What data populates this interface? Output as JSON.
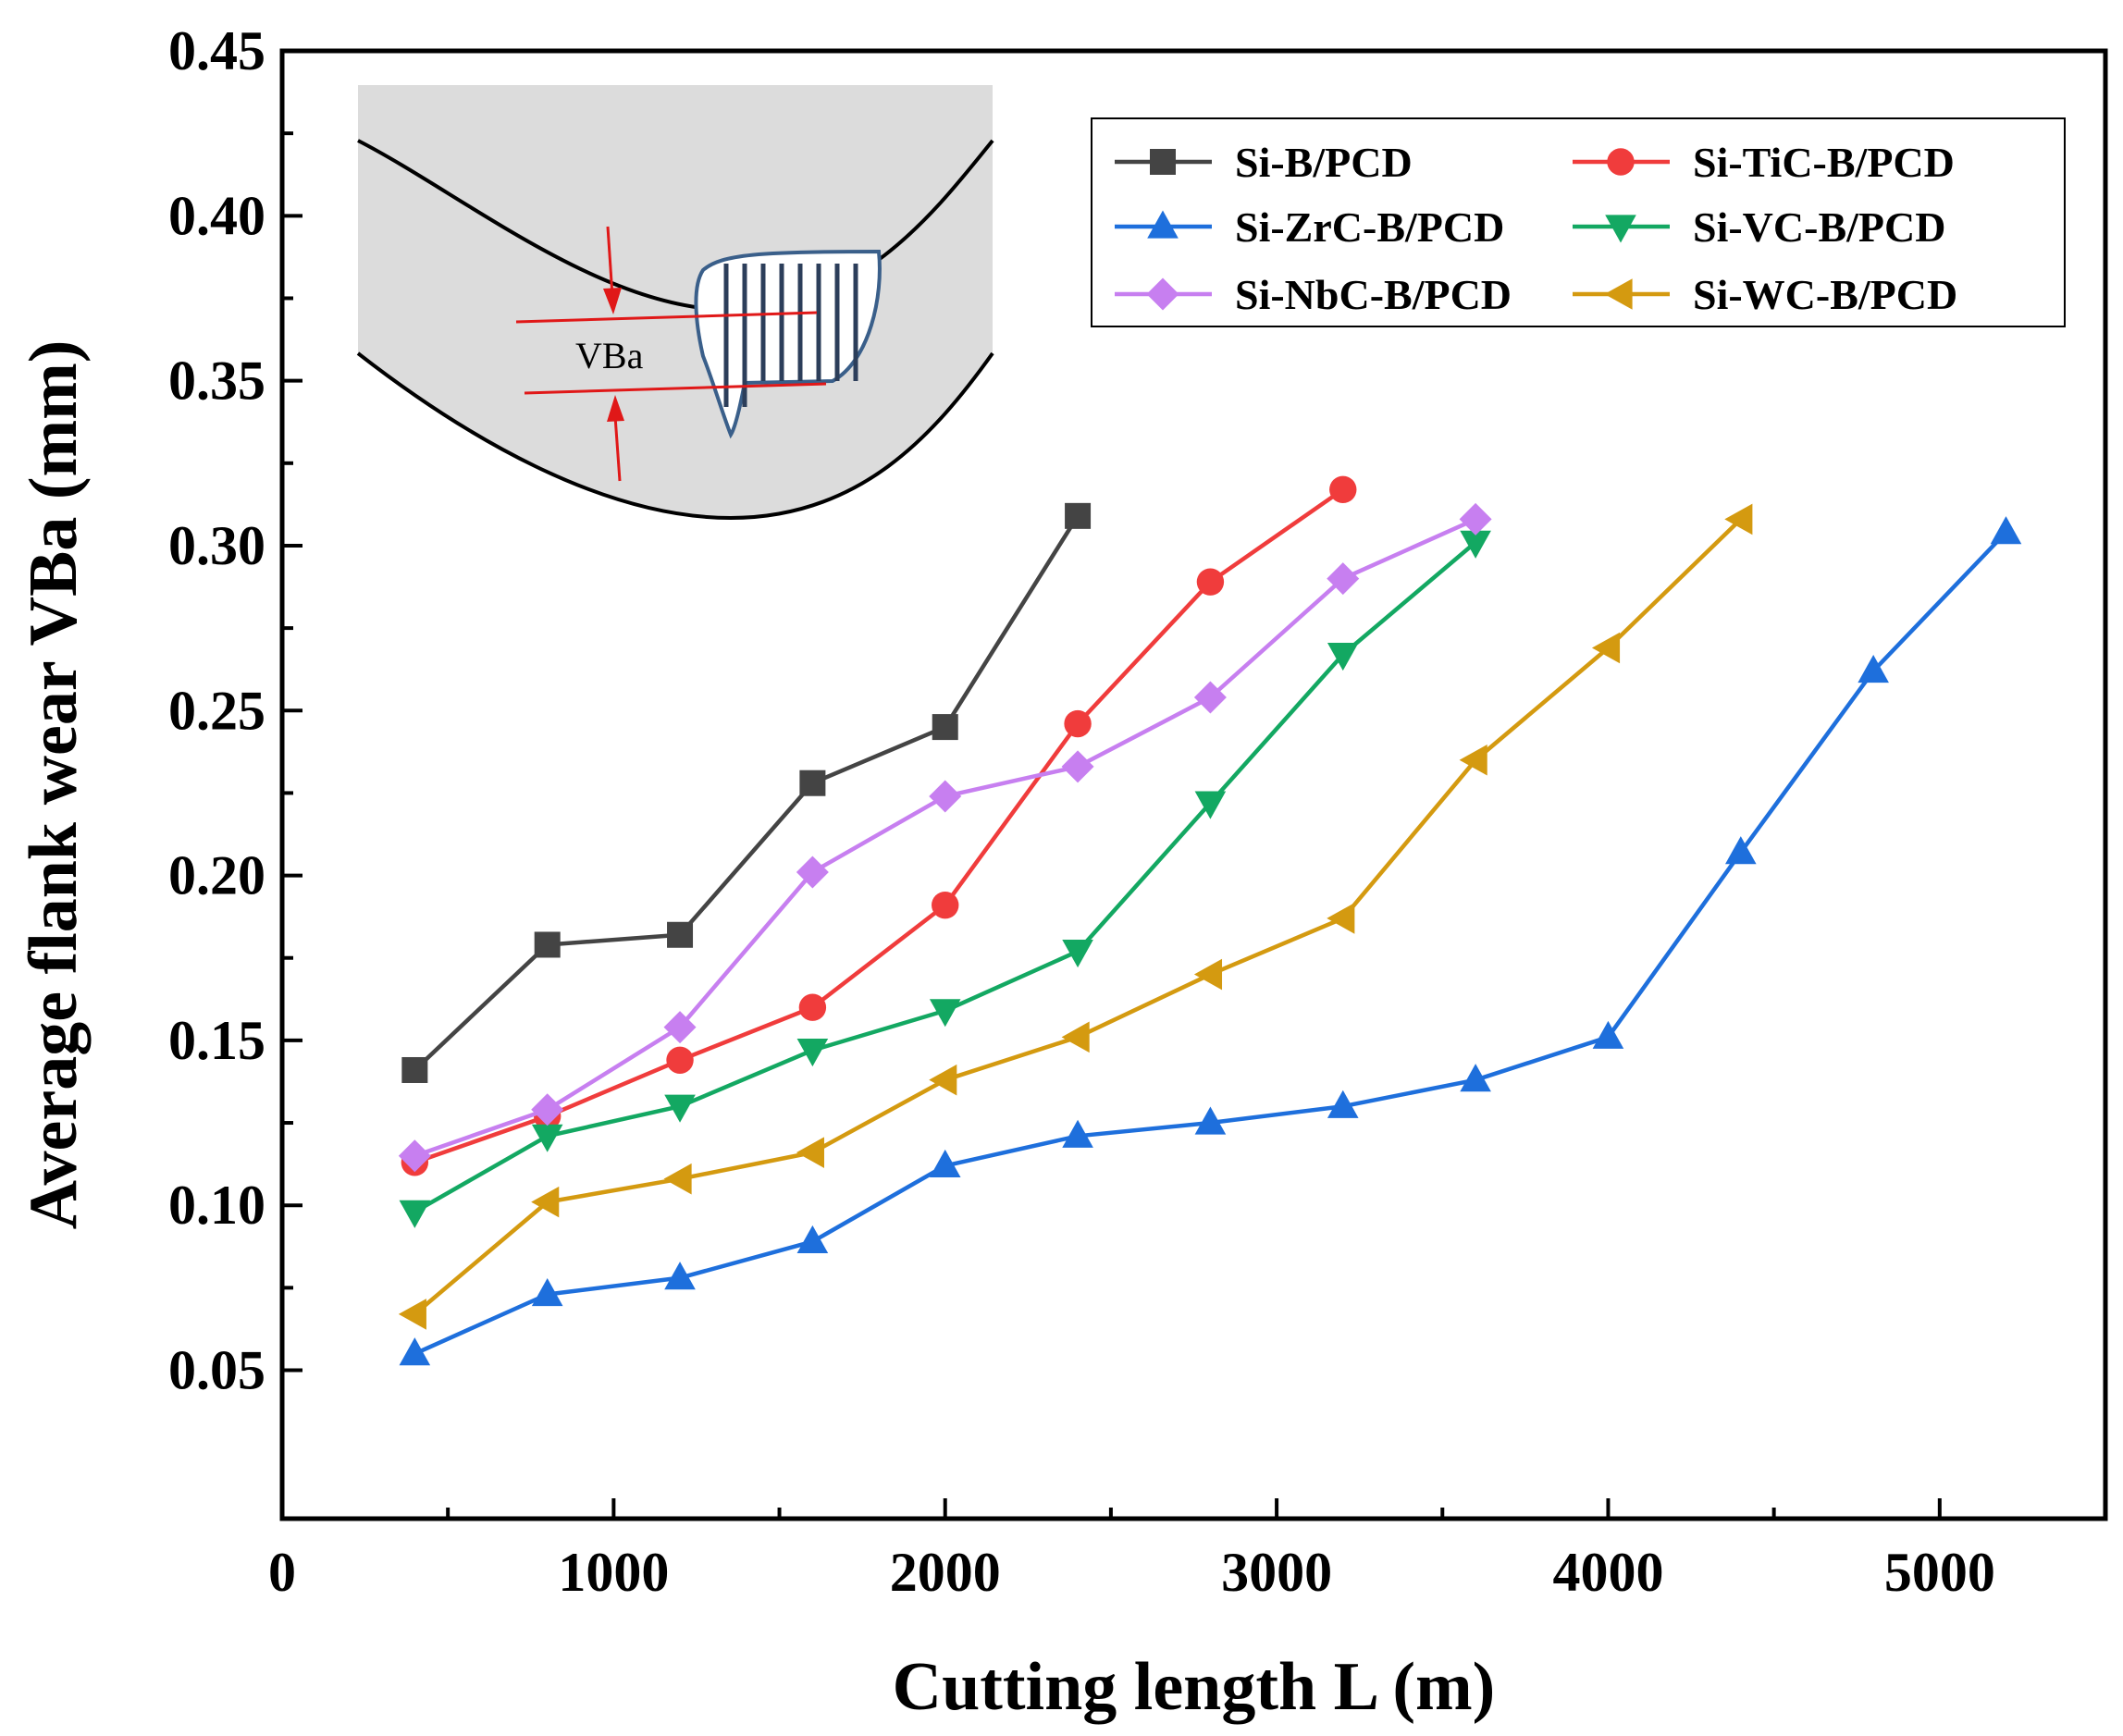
{
  "chart_data": {
    "type": "line",
    "title": "",
    "xlabel": "Cutting length L (m)",
    "ylabel": "Average flank wear VBa (mm)",
    "xlim": [
      0,
      5500
    ],
    "ylim": [
      0.005,
      0.45
    ],
    "xticks": [
      0,
      1000,
      2000,
      3000,
      4000,
      5000
    ],
    "xtick_labels": [
      "0",
      "1000",
      "2000",
      "3000",
      "4000",
      "5000"
    ],
    "yticks": [
      0.05,
      0.1,
      0.15,
      0.2,
      0.25,
      0.3,
      0.35,
      0.4,
      0.45
    ],
    "ytick_labels": [
      "0.05",
      "0.10",
      "0.15",
      "0.20",
      "0.25",
      "0.30",
      "0.35",
      "0.40",
      "0.45"
    ],
    "grid": false,
    "legend_position": "top-right",
    "series": [
      {
        "name": "Si-B/PCD",
        "color": "#444444",
        "marker": "square",
        "x": [
          400,
          800,
          1200,
          1600,
          2000,
          2400
        ],
        "y": [
          0.141,
          0.179,
          0.182,
          0.228,
          0.245,
          0.309
        ]
      },
      {
        "name": "Si-TiC-B/PCD",
        "color": "#f03c3c",
        "marker": "circle",
        "x": [
          400,
          800,
          1200,
          1600,
          2000,
          2400,
          2800,
          3200
        ],
        "y": [
          0.113,
          0.127,
          0.144,
          0.16,
          0.191,
          0.246,
          0.289,
          0.317
        ]
      },
      {
        "name": "Si-ZrC-B/PCD",
        "color": "#1e6fdc",
        "marker": "triangle-up",
        "x": [
          400,
          800,
          1200,
          1600,
          2000,
          2400,
          2800,
          3200,
          3600,
          4000,
          4400,
          4800,
          5200
        ],
        "y": [
          0.055,
          0.073,
          0.078,
          0.089,
          0.112,
          0.121,
          0.125,
          0.13,
          0.138,
          0.151,
          0.207,
          0.262,
          0.304
        ]
      },
      {
        "name": "Si-VC-B/PCD",
        "color": "#13a862",
        "marker": "triangle-down",
        "x": [
          400,
          800,
          1200,
          1600,
          2000,
          2400,
          2800,
          3200,
          3600
        ],
        "y": [
          0.098,
          0.121,
          0.13,
          0.147,
          0.159,
          0.177,
          0.222,
          0.267,
          0.301
        ]
      },
      {
        "name": "Si-NbC-B/PCD",
        "color": "#c77ff0",
        "marker": "diamond",
        "x": [
          400,
          800,
          1200,
          1600,
          2000,
          2400,
          2800,
          3200,
          3600
        ],
        "y": [
          0.115,
          0.129,
          0.154,
          0.201,
          0.224,
          0.233,
          0.254,
          0.29,
          0.308
        ]
      },
      {
        "name": "Si-WC-B/PCD",
        "color": "#d49a10",
        "marker": "triangle-left",
        "x": [
          400,
          800,
          1200,
          1600,
          2000,
          2400,
          2800,
          3200,
          3600,
          4000,
          4400
        ],
        "y": [
          0.067,
          0.101,
          0.108,
          0.116,
          0.138,
          0.151,
          0.17,
          0.187,
          0.235,
          0.269,
          0.308
        ]
      }
    ],
    "inset": {
      "label": "VBa",
      "description_label": "VBa"
    }
  }
}
